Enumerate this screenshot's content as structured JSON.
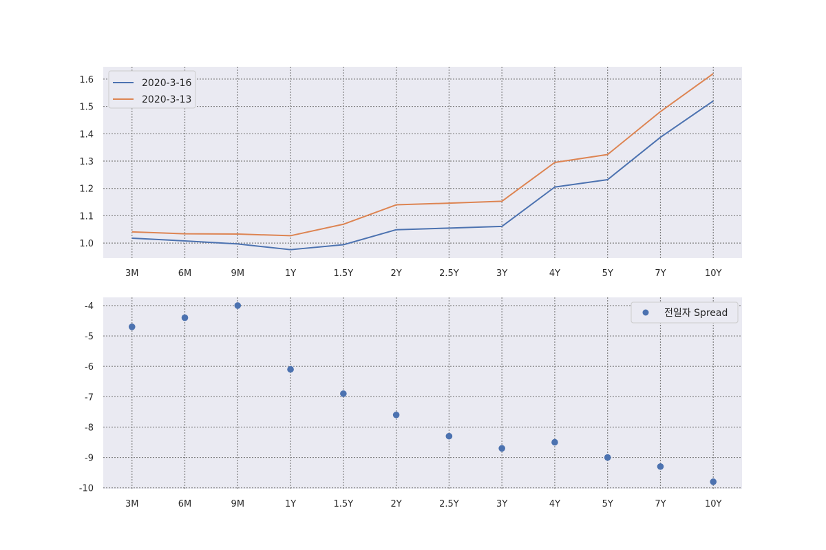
{
  "chart_data": [
    {
      "type": "line",
      "categories": [
        "3M",
        "6M",
        "9M",
        "1Y",
        "1.5Y",
        "2Y",
        "2.5Y",
        "3Y",
        "4Y",
        "5Y",
        "7Y",
        "10Y"
      ],
      "series": [
        {
          "name": "2020-3-16",
          "color": "#4c72b0",
          "values": [
            1.018,
            1.008,
            0.997,
            0.976,
            0.994,
            1.049,
            1.055,
            1.061,
            1.205,
            1.232,
            1.387,
            1.52
          ]
        },
        {
          "name": "2020-3-13",
          "color": "#dd8452",
          "values": [
            1.041,
            1.034,
            1.033,
            1.027,
            1.069,
            1.14,
            1.146,
            1.153,
            1.295,
            1.324,
            1.481,
            1.62
          ]
        }
      ],
      "ylim": [
        0.945,
        1.645
      ],
      "yticks": [
        1.0,
        1.1,
        1.2,
        1.3,
        1.4,
        1.5,
        1.6
      ],
      "ytick_labels": [
        "1.0",
        "1.1",
        "1.2",
        "1.3",
        "1.4",
        "1.5",
        "1.6"
      ],
      "grid": true,
      "legend": "top-left"
    },
    {
      "type": "scatter",
      "categories": [
        "3M",
        "6M",
        "9M",
        "1Y",
        "1.5Y",
        "2Y",
        "2.5Y",
        "3Y",
        "4Y",
        "5Y",
        "7Y",
        "10Y"
      ],
      "series": [
        {
          "name": "전일자 Spread",
          "color": "#4c72b0",
          "values": [
            -4.7,
            -4.4,
            -4.0,
            -6.1,
            -6.9,
            -7.6,
            -8.3,
            -8.7,
            -8.5,
            -9.0,
            -9.3,
            -9.8
          ]
        }
      ],
      "ylim": [
        -10.03,
        -3.73
      ],
      "yticks": [
        -10,
        -9,
        -8,
        -7,
        -6,
        -5,
        -4
      ],
      "ytick_labels": [
        "-10",
        "-9",
        "-8",
        "-7",
        "-6",
        "-5",
        "-4"
      ],
      "grid": true,
      "legend": "top-right"
    }
  ]
}
